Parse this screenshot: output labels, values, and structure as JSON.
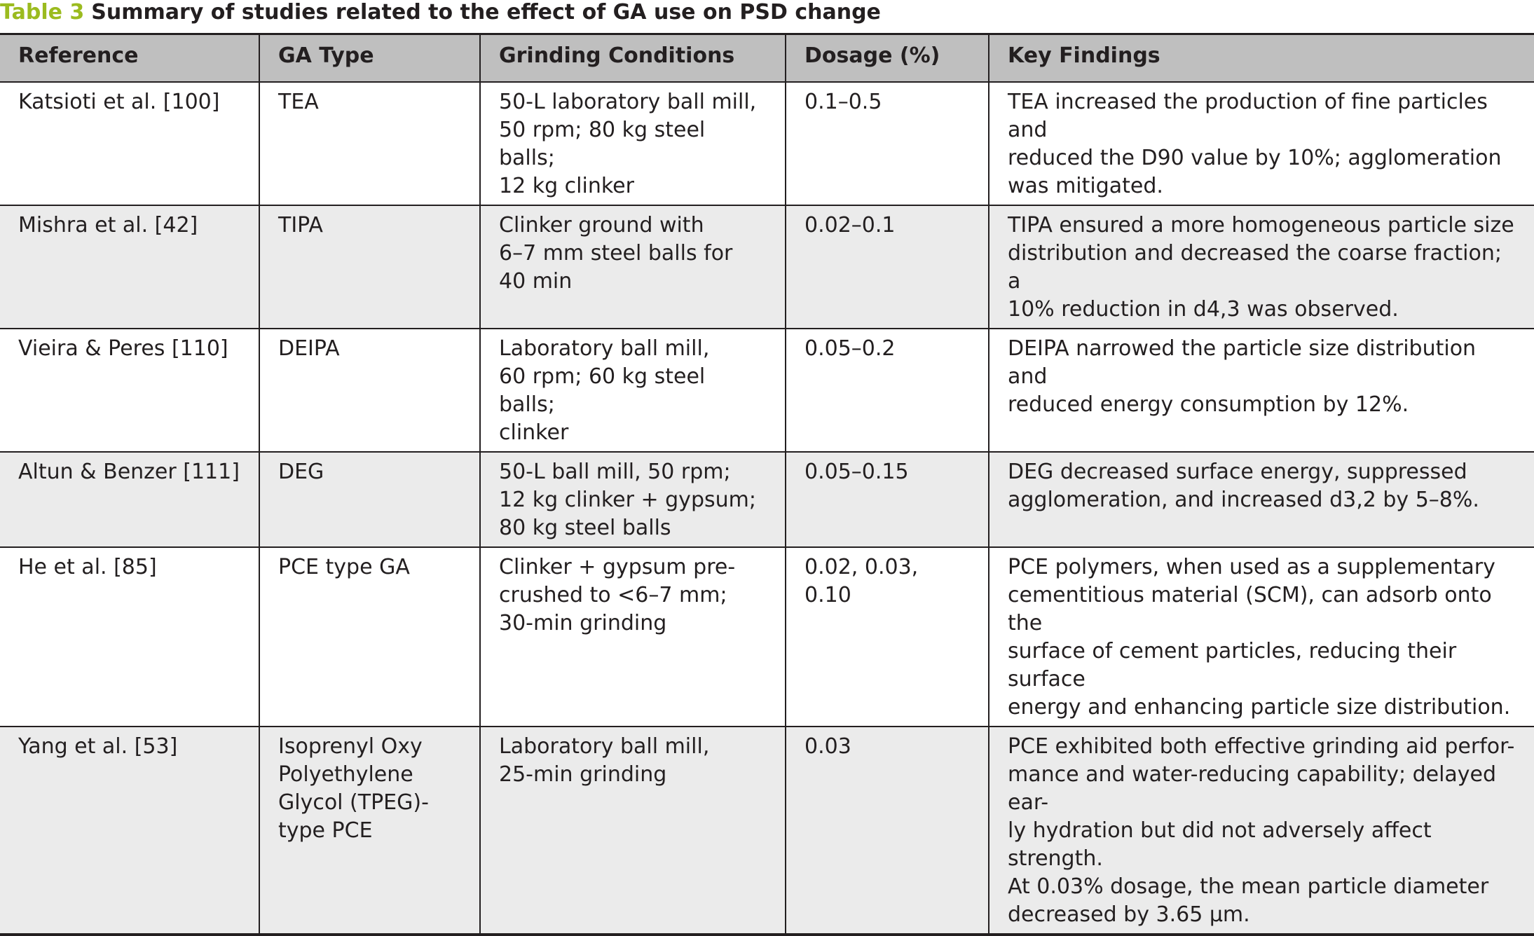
{
  "caption": {
    "label": "Table 3",
    "title": "Summary of studies related to the effect of GA use on PSD change"
  },
  "colors": {
    "caption_label": "#9bbb1f",
    "header_background": "#bfbfbf",
    "shaded_row_background": "#ebebeb",
    "text": "#231f20"
  },
  "table": {
    "headers": [
      "Reference",
      "GA Type",
      "Grinding Conditions",
      "Dosage (%)",
      "Key Findings"
    ],
    "rows": [
      {
        "reference": "Katsioti et al. [100]",
        "ga_type": "TEA",
        "grinding": "50-L laboratory ball mill,\n50 rpm; 80 kg steel balls;\n12 kg clinker",
        "dosage": "0.1–0.5",
        "findings": "TEA increased the production of fine particles and\nreduced the D90 value by 10%; agglomeration\nwas mitigated."
      },
      {
        "reference": "Mishra et al. [42]",
        "ga_type": "TIPA",
        "grinding": "Clinker ground with\n6–7 mm steel balls for\n40 min",
        "dosage": "0.02–0.1",
        "findings": "TIPA ensured a more homogeneous particle size\ndistribution and decreased the coarse fraction; a\n10% reduction in d4,3 was observed."
      },
      {
        "reference": "Vieira & Peres [110]",
        "ga_type": "DEIPA",
        "grinding": "Laboratory ball mill,\n60 rpm; 60 kg steel balls;\nclinker",
        "dosage": "0.05–0.2",
        "findings": "DEIPA narrowed the particle size distribution and\nreduced energy consumption by 12%."
      },
      {
        "reference": "Altun & Benzer [111]",
        "ga_type": "DEG",
        "grinding": "50-L ball mill, 50 rpm;\n12 kg clinker + gypsum;\n80 kg steel balls",
        "dosage": "0.05–0.15",
        "findings": "DEG decreased surface energy, suppressed\nagglomeration, and increased d3,2 by 5–8%."
      },
      {
        "reference": "He et al. [85]",
        "ga_type": "PCE type GA",
        "grinding": "Clinker + gypsum pre-\ncrushed to <6–7 mm;\n30-min grinding",
        "dosage": "0.02, 0.03, 0.10",
        "findings": "PCE polymers, when used as a supplementary\ncementitious material (SCM), can adsorb onto the\nsurface of cement particles, reducing their surface\nenergy and enhancing particle size distribution."
      },
      {
        "reference": "Yang et al. [53]",
        "ga_type": "Isoprenyl Oxy\nPolyethylene\nGlycol (TPEG)-\ntype PCE",
        "grinding": "Laboratory ball mill,\n25-min grinding",
        "dosage": "0.03",
        "findings": "PCE exhibited both effective grinding aid perfor-\nmance and water-reducing capability; delayed ear-\nly hydration but did not adversely affect strength.\nAt 0.03% dosage, the mean particle diameter\ndecreased by 3.65 μm."
      }
    ]
  }
}
